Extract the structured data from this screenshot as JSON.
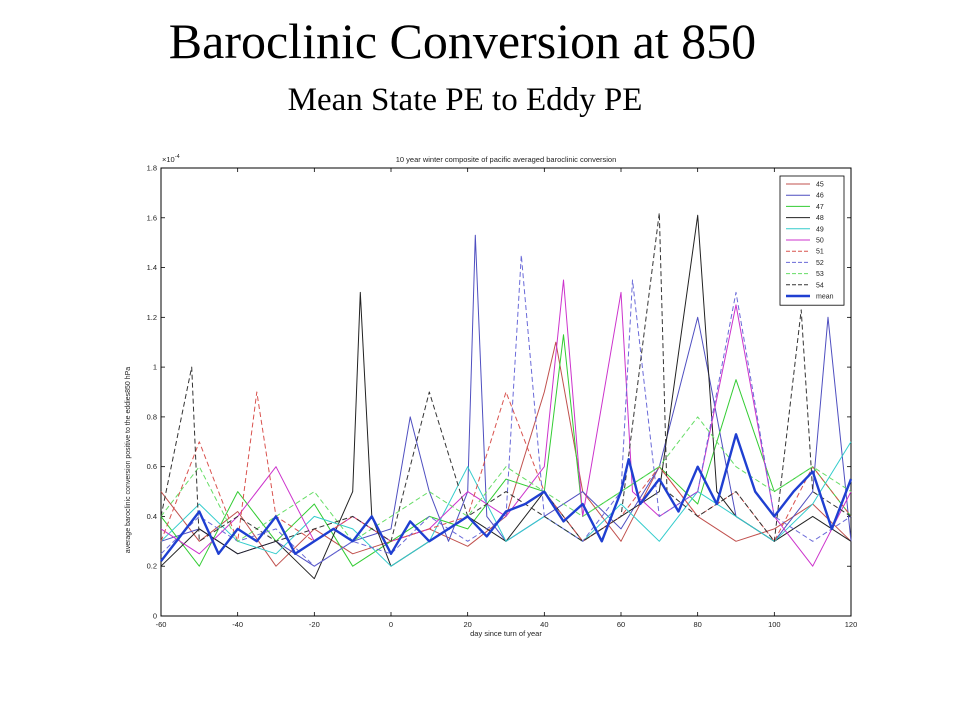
{
  "slide": {
    "title": "Baroclinic Conversion at 850",
    "subtitle": "Mean State PE to Eddy PE"
  },
  "chart_data": {
    "type": "line",
    "title": "10 year winter composite of pacific averaged baroclinic conversion",
    "xlabel": "day since turn of year",
    "ylabel": "average baroclinic conversion positive to the eddies850 hPa",
    "y_exponent_label": "×10",
    "y_exponent_power": "-4",
    "xlim": [
      -60,
      120
    ],
    "ylim": [
      0,
      1.8
    ],
    "x_ticks": [
      "-60",
      "-40",
      "-20",
      "0",
      "20",
      "40",
      "60",
      "80",
      "100",
      "120"
    ],
    "y_ticks": [
      "0",
      "0.2",
      "0.4",
      "0.6",
      "0.8",
      "1",
      "1.2",
      "1.4",
      "1.6",
      "1.8"
    ],
    "x_tick_values": [
      -60,
      -40,
      -20,
      0,
      20,
      40,
      60,
      80,
      100,
      120
    ],
    "y_tick_values": [
      0,
      0.2,
      0.4,
      0.6,
      0.8,
      1.0,
      1.2,
      1.4,
      1.6,
      1.8
    ],
    "grid": false,
    "legend_position": "top-right",
    "series": [
      {
        "name": "45",
        "color": "#c0504d",
        "dash": false,
        "x": [
          -60,
          -50,
          -40,
          -30,
          -20,
          -10,
          0,
          10,
          20,
          30,
          40,
          43,
          50,
          60,
          70,
          80,
          90,
          100,
          110,
          120
        ],
        "values": [
          0.5,
          0.3,
          0.42,
          0.2,
          0.35,
          0.25,
          0.3,
          0.35,
          0.28,
          0.4,
          0.9,
          1.1,
          0.5,
          0.3,
          0.6,
          0.4,
          0.3,
          0.35,
          0.45,
          0.3
        ]
      },
      {
        "name": "46",
        "color": "#4f4fc0",
        "dash": false,
        "x": [
          -60,
          -50,
          -40,
          -30,
          -20,
          -10,
          0,
          5,
          10,
          15,
          20,
          22,
          25,
          30,
          40,
          50,
          60,
          70,
          80,
          90,
          100,
          110,
          114,
          120
        ],
        "values": [
          0.3,
          0.35,
          0.25,
          0.3,
          0.2,
          0.3,
          0.35,
          0.8,
          0.5,
          0.3,
          0.5,
          1.53,
          0.4,
          0.3,
          0.4,
          0.5,
          0.35,
          0.6,
          1.2,
          0.4,
          0.3,
          0.5,
          1.2,
          0.3
        ]
      },
      {
        "name": "47",
        "color": "#33cc33",
        "dash": false,
        "x": [
          -60,
          -50,
          -40,
          -30,
          -20,
          -10,
          0,
          10,
          20,
          30,
          40,
          45,
          50,
          60,
          70,
          80,
          90,
          100,
          110,
          120
        ],
        "values": [
          0.4,
          0.2,
          0.5,
          0.3,
          0.45,
          0.2,
          0.3,
          0.4,
          0.35,
          0.55,
          0.5,
          1.13,
          0.4,
          0.5,
          0.6,
          0.45,
          0.95,
          0.5,
          0.6,
          0.4
        ]
      },
      {
        "name": "48",
        "color": "#222222",
        "dash": false,
        "x": [
          -60,
          -50,
          -40,
          -30,
          -20,
          -10,
          -8,
          -5,
          0,
          10,
          20,
          30,
          40,
          50,
          60,
          70,
          80,
          85,
          90,
          100,
          110,
          120
        ],
        "values": [
          0.2,
          0.35,
          0.25,
          0.3,
          0.15,
          0.5,
          1.3,
          0.4,
          0.2,
          0.3,
          0.4,
          0.3,
          0.5,
          0.3,
          0.4,
          0.5,
          1.61,
          0.5,
          0.4,
          0.3,
          0.4,
          0.3
        ]
      },
      {
        "name": "49",
        "color": "#33cccc",
        "dash": false,
        "x": [
          -60,
          -50,
          -40,
          -30,
          -20,
          -10,
          0,
          10,
          20,
          30,
          40,
          50,
          60,
          70,
          80,
          90,
          100,
          110,
          120
        ],
        "values": [
          0.3,
          0.45,
          0.3,
          0.25,
          0.4,
          0.35,
          0.2,
          0.3,
          0.6,
          0.3,
          0.4,
          0.3,
          0.45,
          0.3,
          0.5,
          0.4,
          0.3,
          0.45,
          0.7
        ]
      },
      {
        "name": "50",
        "color": "#cc33cc",
        "dash": false,
        "x": [
          -60,
          -50,
          -40,
          -30,
          -20,
          -10,
          0,
          10,
          20,
          30,
          40,
          45,
          50,
          60,
          63,
          70,
          80,
          90,
          100,
          110,
          120
        ],
        "values": [
          0.35,
          0.25,
          0.4,
          0.6,
          0.3,
          0.4,
          0.3,
          0.35,
          0.5,
          0.4,
          0.6,
          1.35,
          0.4,
          1.3,
          0.5,
          0.4,
          0.5,
          1.25,
          0.4,
          0.2,
          0.5
        ]
      },
      {
        "name": "51",
        "color": "#d9534f",
        "dash": true,
        "x": [
          -60,
          -50,
          -40,
          -35,
          -30,
          -20,
          -10,
          0,
          10,
          20,
          30,
          40,
          50,
          60,
          70,
          80,
          90,
          100,
          110,
          120
        ],
        "values": [
          0.3,
          0.7,
          0.3,
          0.9,
          0.4,
          0.3,
          0.4,
          0.3,
          0.35,
          0.4,
          0.9,
          0.5,
          0.3,
          0.4,
          0.6,
          0.4,
          0.5,
          0.3,
          0.6,
          0.4
        ]
      },
      {
        "name": "52",
        "color": "#6a6ad8",
        "dash": true,
        "x": [
          -60,
          -50,
          -40,
          -30,
          -20,
          -10,
          0,
          10,
          20,
          30,
          34,
          40,
          50,
          60,
          63,
          70,
          80,
          90,
          100,
          110,
          120
        ],
        "values": [
          0.25,
          0.4,
          0.3,
          0.35,
          0.2,
          0.3,
          0.25,
          0.4,
          0.3,
          0.4,
          1.45,
          0.4,
          0.3,
          0.5,
          1.35,
          0.4,
          0.5,
          1.3,
          0.4,
          0.3,
          0.4
        ]
      },
      {
        "name": "53",
        "color": "#66dd66",
        "dash": true,
        "x": [
          -60,
          -50,
          -40,
          -30,
          -20,
          -10,
          0,
          10,
          20,
          30,
          40,
          50,
          60,
          70,
          80,
          90,
          100,
          110,
          120
        ],
        "values": [
          0.4,
          0.6,
          0.3,
          0.4,
          0.5,
          0.3,
          0.4,
          0.5,
          0.4,
          0.6,
          0.5,
          0.4,
          0.5,
          0.6,
          0.8,
          0.6,
          0.5,
          0.6,
          0.5
        ]
      },
      {
        "name": "54",
        "color": "#333333",
        "dash": true,
        "x": [
          -60,
          -52,
          -50,
          -40,
          -30,
          -20,
          -10,
          0,
          10,
          20,
          30,
          40,
          50,
          60,
          70,
          72,
          80,
          90,
          100,
          107,
          110,
          120
        ],
        "values": [
          0.4,
          1.0,
          0.3,
          0.4,
          0.3,
          0.35,
          0.4,
          0.3,
          0.9,
          0.4,
          0.5,
          0.4,
          0.3,
          0.4,
          1.62,
          0.5,
          0.4,
          0.5,
          0.3,
          1.23,
          0.5,
          0.4
        ]
      },
      {
        "name": "mean",
        "color": "#1f3fd1",
        "dash": false,
        "bold": true,
        "x": [
          -60,
          -55,
          -50,
          -45,
          -40,
          -35,
          -30,
          -25,
          -20,
          -15,
          -10,
          -5,
          0,
          5,
          10,
          15,
          20,
          25,
          30,
          35,
          40,
          45,
          50,
          55,
          60,
          62,
          65,
          70,
          75,
          80,
          85,
          90,
          95,
          100,
          105,
          110,
          115,
          120
        ],
        "values": [
          0.22,
          0.32,
          0.42,
          0.25,
          0.35,
          0.3,
          0.4,
          0.25,
          0.3,
          0.35,
          0.3,
          0.4,
          0.25,
          0.38,
          0.3,
          0.35,
          0.4,
          0.32,
          0.42,
          0.45,
          0.5,
          0.38,
          0.45,
          0.3,
          0.5,
          0.63,
          0.45,
          0.55,
          0.42,
          0.6,
          0.45,
          0.73,
          0.5,
          0.4,
          0.5,
          0.58,
          0.35,
          0.55
        ]
      }
    ]
  }
}
